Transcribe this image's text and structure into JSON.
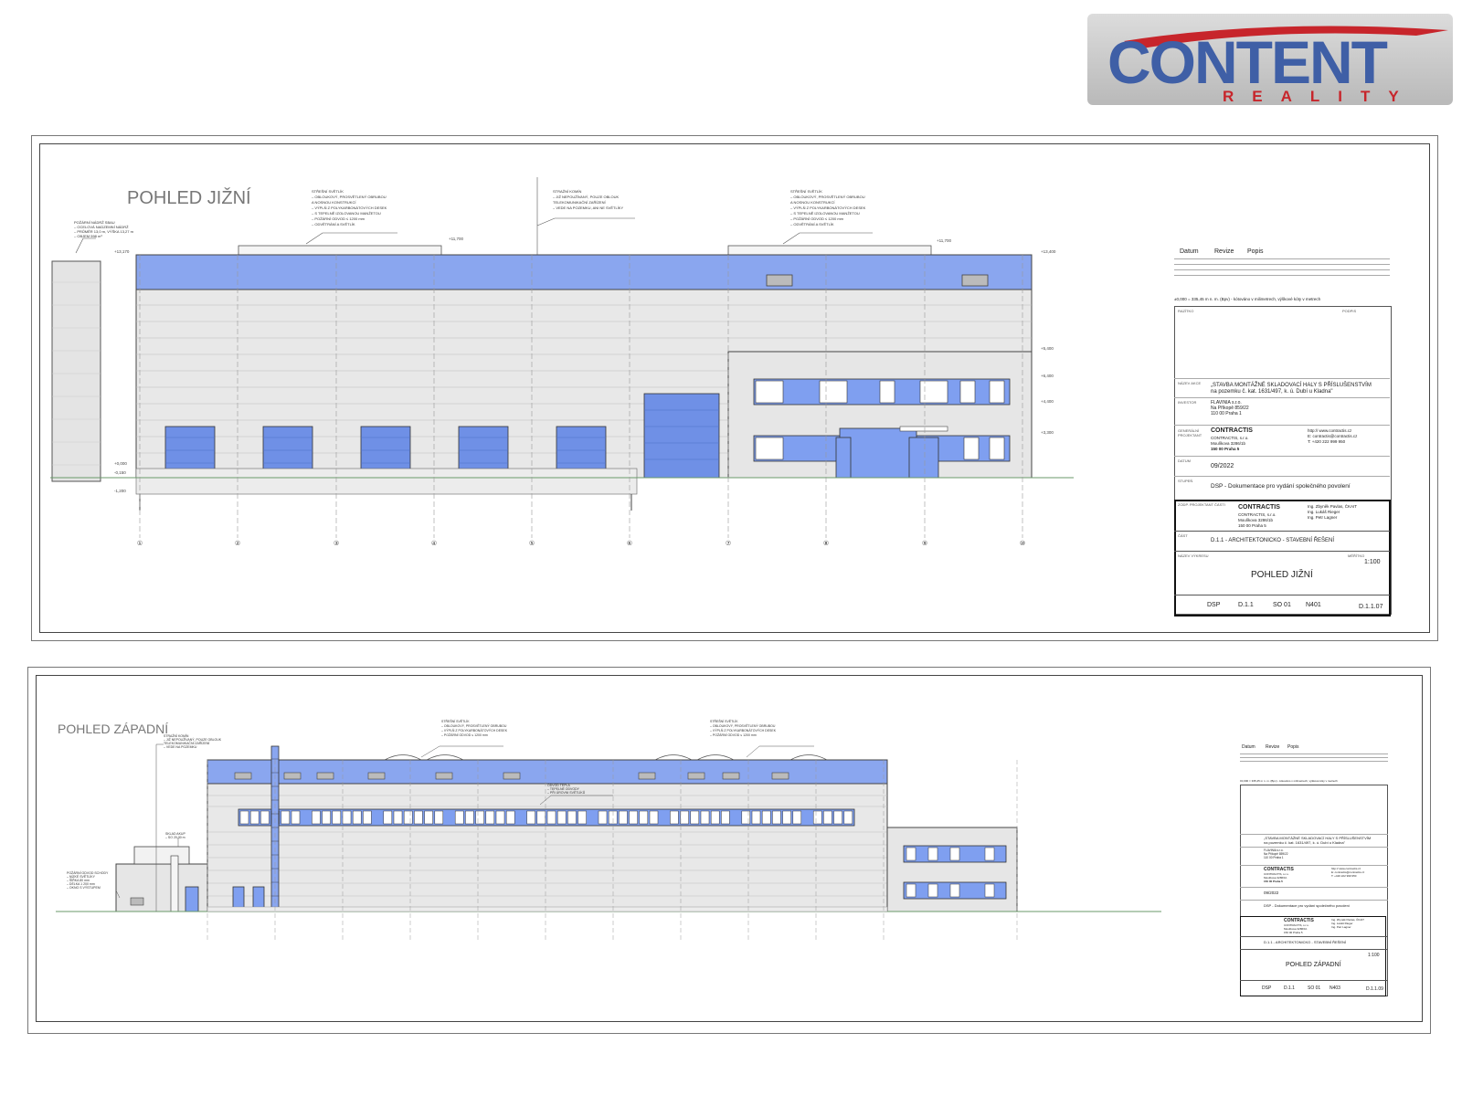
{
  "logo": {
    "main": "CONTENT",
    "sub": "REALITY",
    "colors": {
      "blue": "#3f5fa6",
      "red": "#c7252b"
    }
  },
  "sheet1": {
    "title": "POHLED JIŽNÍ",
    "notes": {
      "left": [
        "POŽÁRNÍ NÁDRŽ SBAU",
        "– OCELOVÁ NADZEMNÍ NÁDRŽ",
        "– PRŮMĚR 13,0 m, VÝŠKA 13,27 m",
        "– OBJEM 598 m³"
      ],
      "roof1": [
        "STŘEŠNÍ SVĚTLÍK",
        "– OBLOUKOVÝ, PROSVĚTLENÝ OBRUBOU",
        "  A NOSNOU KONSTRUKCÍ",
        "– VÝPLŇ Z POLYKARBONÁTOVÝCH DESEK",
        "– S TEPELNĚ IZOLOVANOU MANŽETOU",
        "– POŽÁRNÍ ODVOD ≤ 1200 mm",
        "– ODVĚTRÁNÍ A SVĚTLÍK"
      ],
      "mid": [
        "STRAŽNÍ KOMÍN",
        "– JIŽ NEPOUŽÍVANÝ, POUZE OBLOUK",
        "  TELEKOMUNIKAČNÍ ZAŘÍZENÍ",
        "– VEDE NA POZEMKU, ANI NE SVĚTLÍKY"
      ],
      "roof2": [
        "STŘEŠNÍ SVĚTLÍK",
        "– OBLOUKOVÝ, PROSVĚTLENÝ OBRUBOU",
        "  A NOSNOU KONSTRUKCÍ",
        "– VÝPLŇ Z POLYKARBONÁTOVÝCH DESEK",
        "– S TEPELNĚ IZOLOVANOU MANŽETOU",
        "– POŽÁRNÍ ODVOD ≤ 1200 mm",
        "– ODVĚTRÁNÍ A SVĚTLÍK"
      ]
    },
    "levels": [
      "+13,170",
      "+11,700",
      "+11,700",
      "+13,400",
      "+5,400",
      "+6,400",
      "+4,400",
      "+3,300",
      "+0,000",
      "-0,150",
      "-1,200"
    ],
    "axes": [
      "①",
      "②",
      "③",
      "④",
      "⑤",
      "⑥",
      "⑦",
      "⑧",
      "⑨",
      "⑩"
    ],
    "titleblock": {
      "rev_headers": [
        "Datum",
        "Revize",
        "Popis"
      ],
      "note": "±0,000 = 335,45 m n. m. (Bpv) - kótováno v milimetrech, výškové kóty v metrech",
      "labels": {
        "razitko": "RAZÍTKO",
        "podpis": "PODPIS",
        "akce": "NÁZEV AKCE",
        "investor": "INVESTOR",
        "gp": "GENERÁLNÍ PROJEKTANT",
        "datum": "DATUM",
        "stupen": "STUPEŇ",
        "zpracovatel": "ZODP. PROJEKTANT ČÁSTI",
        "cast": "ČÁST",
        "vykres": "NÁZEV VÝKRESU",
        "meritko": "MĚŘÍTKO"
      },
      "project": [
        "„STAVBA MONTÁŽNÉ SKLADOVACÍ HALY S PŘÍSLUŠENSTVÍM",
        "na pozemku č. kat. 1631/497, k. ú. Dubí u Kladna\""
      ],
      "investor": [
        "FLAVINIA s.r.o.",
        "Na Příkopě 859/22",
        "110 00 Praha 1"
      ],
      "gp_name": "CONTRACTIS",
      "gp_address": [
        "CONTRACTIS, s.r.o.",
        "Moulíkova 3286/1b",
        "150 00 Praha 5"
      ],
      "gp_contact": [
        "http:// www.contractis.cz",
        "E:  contractis@contractis.cz",
        "T:  +420 222 999 950"
      ],
      "date": "09/2022",
      "stage": "DSP - Dokumentace pro vydání společného povolení",
      "engineers": [
        "Ing. Zbyněk Pavlas, ČKAIT",
        "Ing. Lukáš Rieger",
        "Ing. Petr Lagner"
      ],
      "part": "D.1.1 - ARCHITEKTONICKO - STAVEBNÍ ŘEŠENÍ",
      "scale": "1:100",
      "drawing_title": "POHLED JIŽNÍ",
      "codes": [
        "DSP",
        "D.1.1",
        "SO 01",
        "N401",
        "D.1.1.07"
      ]
    }
  },
  "sheet2": {
    "title": "POHLED ZÁPADNÍ",
    "notes": {
      "left1": [
        "STRAŽNÍ KOMÍN",
        "– JIŽ NEPOUŽÍVANÝ, POUZE OBLOUK",
        "  TELEKOMUNIKAČNÍ ZAŘÍZENÍ",
        "– VEDE NA POZEMKU"
      ],
      "left2": [
        "SKLAD AKUP",
        "– SO 20,30 m"
      ],
      "left3": [
        "POŽÁRNÍ ODVOD SCHODY",
        "– NÍZKÉ SVĚTLÍKY",
        "– ŠÍŘKA 80 mm",
        "– DÉLKA 1 200 mm",
        "– OKNO S VÝSTUPEM"
      ],
      "roof1": [
        "STŘEŠNÍ SVĚTLÍK",
        "– OBLOUKOVÝ, PROSVĚTLENÝ OBRUBOU",
        "– VÝPLŇ Z POLYKARBONÁTOVÝCH DESEK",
        "– POŽÁRNÍ ODVOD ≤ 1200 mm"
      ],
      "center": [
        "ODVOD TEPLA",
        "– TEPELNÉ ODVODY",
        "– PŘI ÚROVNI SVĚTLÍKŮ"
      ],
      "roof2": [
        "STŘEŠNÍ SVĚTLÍK",
        "– OBLOUKOVÝ, PROSVĚTLENÝ OBRUBOU",
        "– VÝPLŇ Z POLYKARBONÁTOVÝCH DESEK",
        "– POŽÁRNÍ ODVOD ≤ 1200 mm"
      ]
    },
    "titleblock": {
      "rev_headers": [
        "Datum",
        "Revize",
        "Popis"
      ],
      "note": "±0,000 = 335,45 m n. m. (Bpv) - kótováno v milimetrech, výškové kóty v metrech",
      "project": [
        "„STAVBA MONTÁŽNÉ SKLADOVACÍ HALY S PŘÍSLUŠENSTVÍM",
        "na pozemku č. kat. 1631/497, k. ú. Dubí u Kladna\""
      ],
      "investor": [
        "FLAVINIA s.r.o.",
        "Na Příkopě 859/22",
        "110 00 Praha 1"
      ],
      "gp_name": "CONTRACTIS",
      "gp_address": [
        "CONTRACTIS, s.r.o.",
        "Moulíkova 3286/1b",
        "150 00 Praha 5"
      ],
      "gp_contact": [
        "http:// www.contractis.cz",
        "E:  contractis@contractis.cz",
        "T:  +420 222 999 950"
      ],
      "date": "09/2022",
      "stage": "DSP - Dokumentace pro vydání společného povolení",
      "engineers": [
        "Ing. Zbyněk Pavlas, ČKAIT",
        "Ing. Lukáš Rieger",
        "Ing. Petr Lagner"
      ],
      "part": "D.1.1 - ARCHITEKTONICKO - STAVEBNÍ ŘEŠENÍ",
      "scale": "1:100",
      "drawing_title": "POHLED ZÁPADNÍ",
      "codes": [
        "DSP",
        "D.1.1",
        "SO 01",
        "N403",
        "D.1.1.09"
      ]
    }
  }
}
